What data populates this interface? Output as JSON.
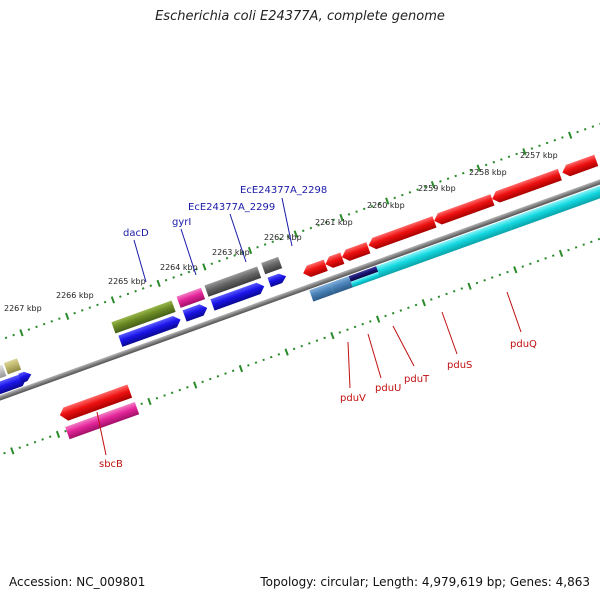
{
  "title": "Escherichia coli E24377A, complete genome",
  "accession": "Accession: NC_009801",
  "summary": "Topology: circular; Length: 4,979,619 bp; Genes: 4,863",
  "colors": {
    "backbone": "#808080",
    "tick": "#2a8a2a",
    "red_gene": "#ee1111",
    "blue_gene": "#1a14e8",
    "cyan_gene": "#14d8e0",
    "pink_gene": "#e4259a",
    "olive_gene": "#6b8a24",
    "gray_gene": "#666666",
    "steel_gene": "#4a82b8",
    "navy_gene": "#1a1470",
    "khaki_gene": "#bdb66a",
    "light_gray_gene": "#c4c4c4",
    "label_blue": "#1a1aa8",
    "label_red": "#c01010"
  },
  "tick_labels": [
    "2257 kbp",
    "2258 kbp",
    "2259 kbp",
    "2260 kbp",
    "2261 kbp",
    "2262 kbp",
    "2263 kbp",
    "2264 kbp",
    "2265 kbp",
    "2266 kbp",
    "2267 kbp"
  ],
  "gene_labels": {
    "dacD": "dacD",
    "gyrI": "gyrI",
    "ece2299": "EcE24377A_2299",
    "ece2298": "EcE24377A_2298",
    "sbcB": "sbcB",
    "pduV": "pduV",
    "pduU": "pduU",
    "pduT": "pduT",
    "pduS": "pduS",
    "pduQ": "pduQ"
  }
}
